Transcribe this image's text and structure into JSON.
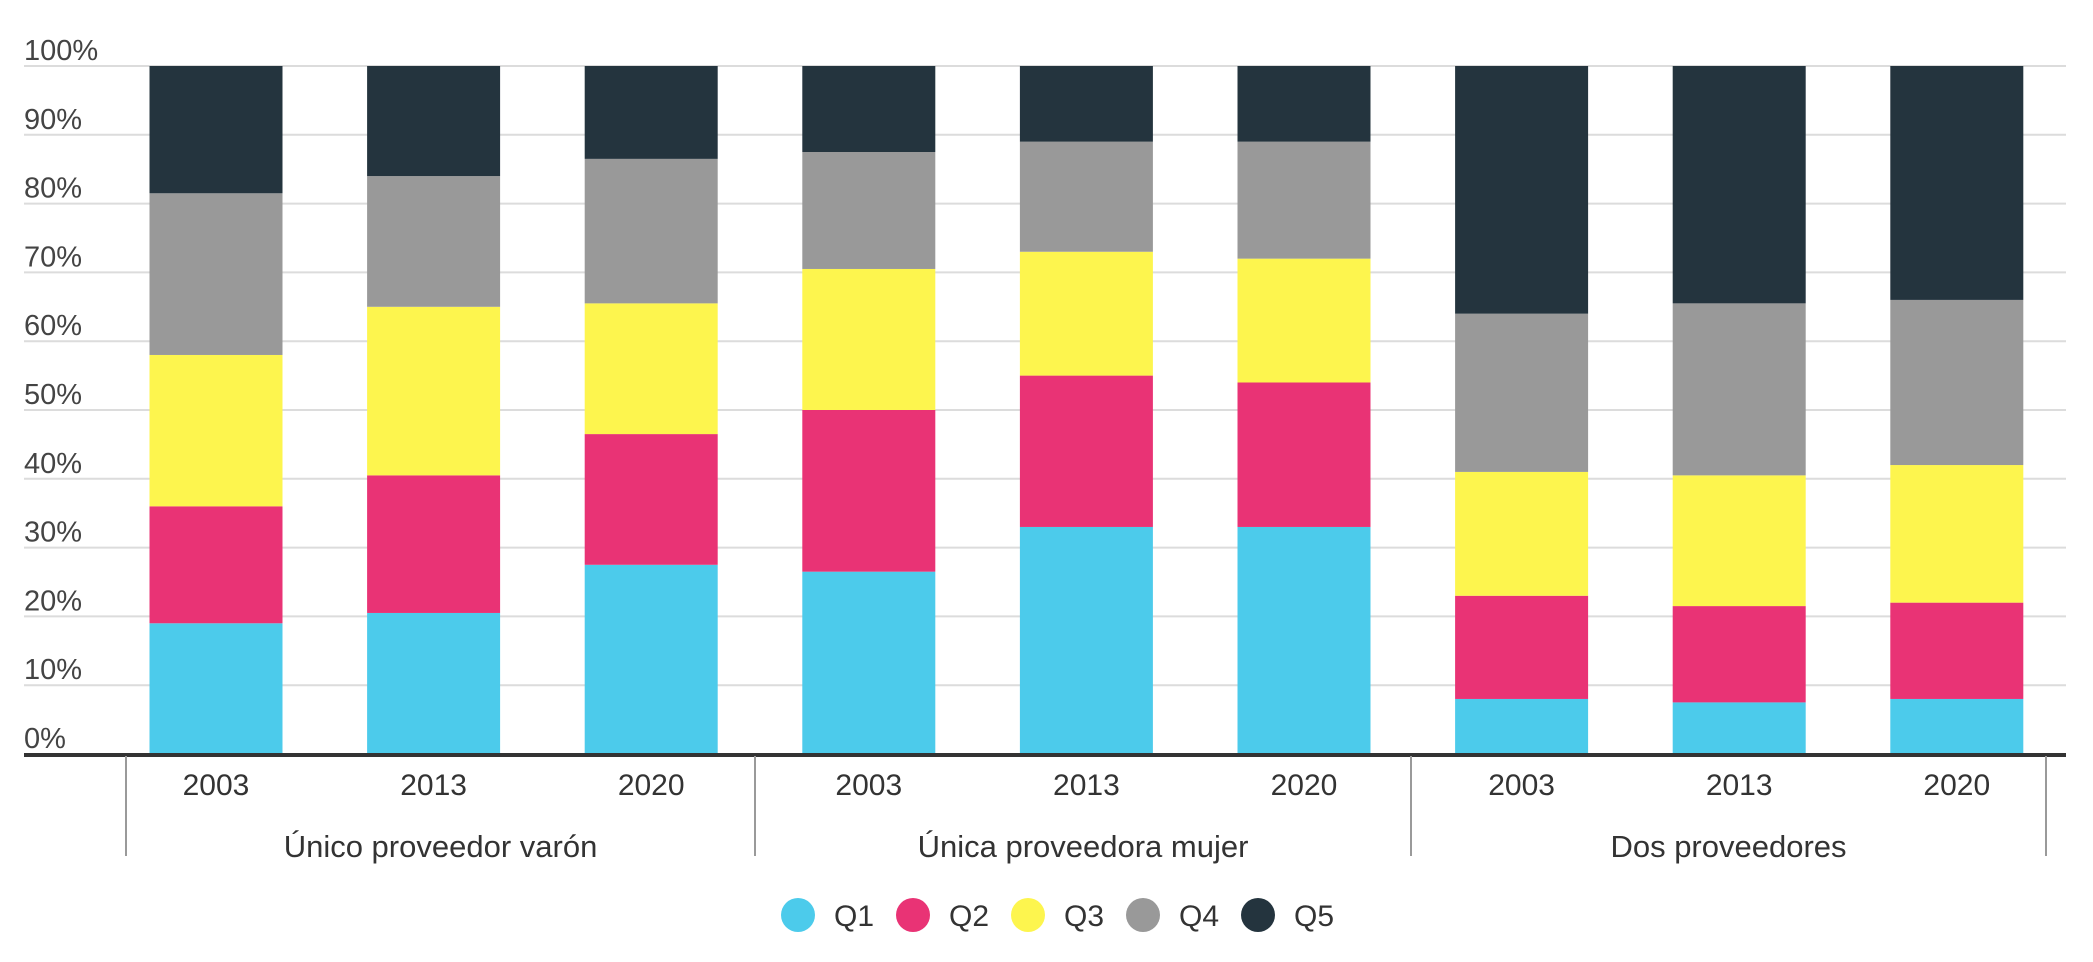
{
  "chart_data": {
    "type": "bar",
    "stacked": true,
    "percent": true,
    "yticks": [
      "0%",
      "10%",
      "20%",
      "30%",
      "40%",
      "50%",
      "60%",
      "70%",
      "80%",
      "90%",
      "100%"
    ],
    "ylim": [
      0,
      100
    ],
    "grid": true,
    "legend_position": "bottom-center",
    "groups": [
      {
        "name": "Único proveedor varón",
        "categories": [
          "2003",
          "2013",
          "2020"
        ]
      },
      {
        "name": "Única proveedora mujer",
        "categories": [
          "2003",
          "2013",
          "2020"
        ]
      },
      {
        "name": "Dos proveedores",
        "categories": [
          "2003",
          "2013",
          "2020"
        ]
      }
    ],
    "series": [
      {
        "name": "Q1",
        "color": "#4ccbeb",
        "values": [
          19,
          20.5,
          27.5,
          26.5,
          33,
          33,
          8,
          7.5,
          8
        ]
      },
      {
        "name": "Q2",
        "color": "#e93375",
        "values": [
          17,
          20,
          19,
          23.5,
          22,
          21,
          15,
          14,
          14
        ]
      },
      {
        "name": "Q3",
        "color": "#fdf54e",
        "values": [
          22,
          24.5,
          19,
          20.5,
          18,
          18,
          18,
          19,
          20
        ]
      },
      {
        "name": "Q4",
        "color": "#999999",
        "values": [
          23.5,
          19,
          21,
          17,
          16,
          17,
          23,
          25,
          24
        ]
      },
      {
        "name": "Q5",
        "color": "#24343e",
        "values": [
          18.5,
          16,
          13.5,
          12.5,
          11,
          11,
          36,
          34.5,
          34
        ]
      }
    ]
  }
}
